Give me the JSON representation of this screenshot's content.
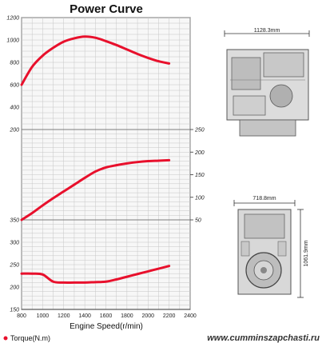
{
  "title": "Power Curve",
  "xlabel": "Engine Speed(r/min)",
  "legend": {
    "label": "Torque(N.m)",
    "color": "#e8102c"
  },
  "dimensions": {
    "top_width": "1128.3mm",
    "bottom_width": "718.8mm",
    "bottom_height": "1061.9mm"
  },
  "watermark": "www.cumminszapchasti.ru",
  "chart_data": [
    {
      "type": "line",
      "name": "torque-panel",
      "x": [
        800,
        900,
        1000,
        1100,
        1200,
        1300,
        1400,
        1500,
        1600,
        1700,
        1800,
        1900,
        2000,
        2100,
        2200
      ],
      "series": [
        {
          "name": "Torque(N.m)",
          "values": [
            600,
            760,
            860,
            930,
            985,
            1015,
            1030,
            1020,
            990,
            955,
            915,
            875,
            840,
            810,
            790
          ],
          "color": "#e8102c"
        }
      ],
      "xlim": [
        800,
        2400
      ],
      "ylim": [
        200,
        1200
      ],
      "yticks": [
        200,
        400,
        600,
        800,
        1000,
        1200
      ],
      "ytick_labels": [
        "200",
        "400",
        "600",
        "800",
        "1000",
        "1200"
      ],
      "grid": true
    },
    {
      "type": "line",
      "name": "power-panel",
      "x": [
        800,
        900,
        1000,
        1100,
        1200,
        1300,
        1400,
        1500,
        1600,
        1700,
        1800,
        1900,
        2000,
        2100,
        2200
      ],
      "series": [
        {
          "values": [
            50,
            65,
            82,
            98,
            113,
            128,
            143,
            157,
            166,
            171,
            175,
            178,
            180,
            181,
            182
          ],
          "color": "#e8102c"
        }
      ],
      "xlim": [
        800,
        2400
      ],
      "ylim": [
        50,
        250
      ],
      "yticks": [
        50,
        100,
        150,
        200,
        250
      ],
      "ytick_labels": [
        "50",
        "100",
        "150",
        "200",
        "250"
      ],
      "grid": true
    },
    {
      "type": "line",
      "name": "fuel-panel",
      "x": [
        800,
        900,
        1000,
        1100,
        1200,
        1300,
        1400,
        1500,
        1600,
        1700,
        1800,
        1900,
        2000,
        2100,
        2200
      ],
      "series": [
        {
          "values": [
            230,
            230,
            228,
            212,
            210,
            210,
            210,
            211,
            212,
            217,
            223,
            229,
            235,
            241,
            247
          ],
          "color": "#e8102c"
        }
      ],
      "xlim": [
        800,
        2400
      ],
      "ylim": [
        150,
        350
      ],
      "yticks": [
        150,
        200,
        250,
        300,
        350
      ],
      "ytick_labels": [
        "150",
        "200",
        "250",
        "300",
        "350"
      ],
      "xticks": [
        800,
        1000,
        1200,
        1400,
        1600,
        1800,
        2000,
        2200,
        2400
      ],
      "xtick_labels": [
        "800",
        "1000",
        "1200",
        "1400",
        "1600",
        "1800",
        "2000",
        "2200",
        "2400"
      ],
      "grid": true
    }
  ]
}
